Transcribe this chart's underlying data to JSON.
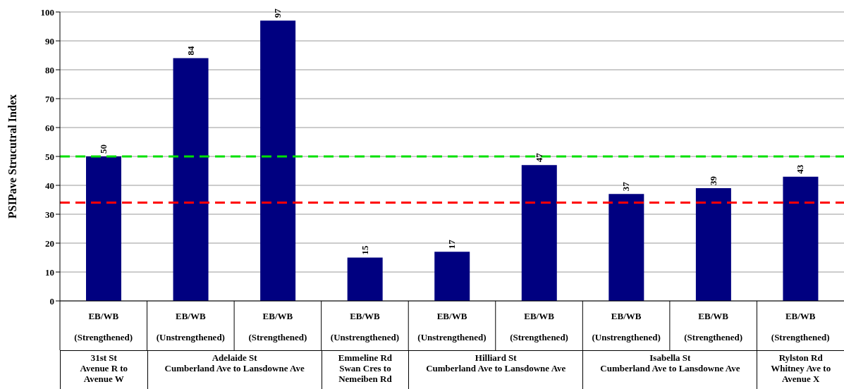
{
  "chart_data": {
    "type": "bar",
    "ylabel": "PSIPave Strucutral Index",
    "categories": [
      "EB/WB\n(Strengthened)",
      "EB/WB\n(Unstrengthened)",
      "EB/WB\n(Strengthened)",
      "EB/WB\n(Unstrengthened)",
      "EB/WB\n(Unstrengthened)",
      "EB/WB\n(Strengthened)",
      "EB/WB\n(Unstrengthened)",
      "EB/WB\n(Strengthened)",
      "EB/WB\n(Strengthened)"
    ],
    "values": [
      50,
      84,
      97,
      15,
      17,
      47,
      37,
      39,
      43
    ],
    "color": "#000080",
    "data_labels": true,
    "ylim": [
      0,
      100
    ],
    "yticks": [
      0,
      10,
      20,
      30,
      40,
      50,
      60,
      70,
      80,
      90,
      100
    ],
    "grid": "y",
    "ref_lines": [
      {
        "axis": "y",
        "value": 50,
        "color": "#00e000",
        "line_style": "dashed"
      },
      {
        "axis": "y",
        "value": 34,
        "color": "#ff0000",
        "line_style": "dashed"
      }
    ],
    "annotations": [
      "31st St\nAvenue R to\nAvenue W",
      "Adelaide St\nCumberland Ave to Lansdowne Ave",
      "Emmeline Rd\nSwan Cres to\nNemeiben Rd",
      "Hilliard St\nCumberland Ave to Lansdowne Ave",
      "Isabella St\nCumberland Ave to Lansdowne Ave",
      "Rylston Rd\nWhitney Ave to\nAvenue X"
    ]
  }
}
